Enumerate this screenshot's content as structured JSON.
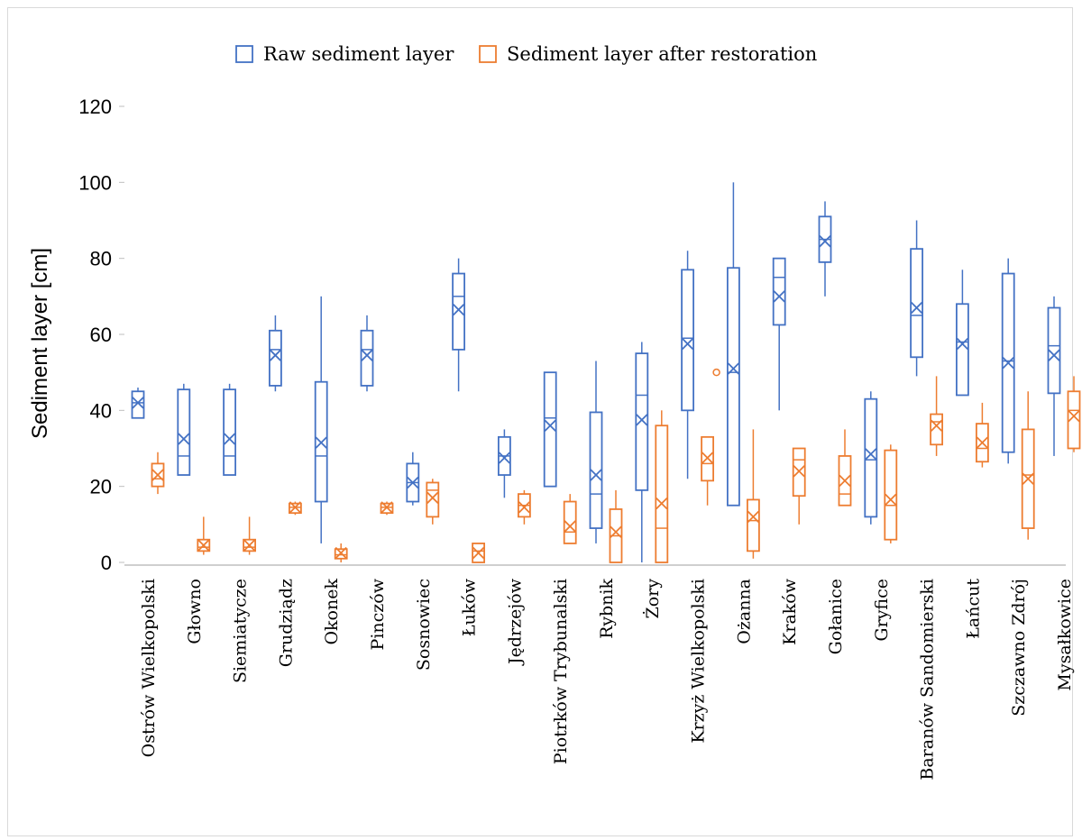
{
  "chart_data": {
    "type": "box",
    "ylabel": "Sediment layer [cm]",
    "ylim": [
      0,
      120
    ],
    "yticks": [
      0,
      20,
      40,
      60,
      80,
      100,
      120
    ],
    "grid": false,
    "legend_position": "top-center",
    "categories": [
      "Ostrów Wielkopolski",
      "Głowno",
      "Siemiatycze",
      "Grudziądz",
      "Okonek",
      "Pinczów",
      "Sosnowiec",
      "Łuków",
      "Jędrzejów",
      "Piotrków Trybunalski",
      "Rybnik",
      "Żory",
      "Krzyż Wielkopolski",
      "Ożanna",
      "Kraków",
      "Gołanice",
      "Gryfice",
      "Baranów Sandomierski",
      "Łańcut",
      "Szczawno Zdrój",
      "Mysałkowice"
    ],
    "series": [
      {
        "name": "Raw sediment layer",
        "color": "#4472C4",
        "boxes": [
          {
            "min": 38,
            "q1": 38,
            "median": 42,
            "q3": 45,
            "max": 46,
            "mean": 42,
            "outliers": []
          },
          {
            "min": 23,
            "q1": 23,
            "median": 28,
            "q3": 45.5,
            "max": 47,
            "mean": 32.5,
            "outliers": []
          },
          {
            "min": 23,
            "q1": 23,
            "median": 28,
            "q3": 45.5,
            "max": 47,
            "mean": 32.5,
            "outliers": []
          },
          {
            "min": 45,
            "q1": 46.5,
            "median": 56,
            "q3": 61,
            "max": 65,
            "mean": 54.5,
            "outliers": []
          },
          {
            "min": 5,
            "q1": 16,
            "median": 28,
            "q3": 47.5,
            "max": 70,
            "mean": 31.5,
            "outliers": []
          },
          {
            "min": 45,
            "q1": 46.5,
            "median": 56,
            "q3": 61,
            "max": 65,
            "mean": 54.5,
            "outliers": []
          },
          {
            "min": 15,
            "q1": 16,
            "median": 21,
            "q3": 26,
            "max": 29,
            "mean": 21,
            "outliers": []
          },
          {
            "min": 45,
            "q1": 56,
            "median": 70,
            "q3": 76,
            "max": 80,
            "mean": 66.5,
            "outliers": []
          },
          {
            "min": 17,
            "q1": 23,
            "median": 28,
            "q3": 33,
            "max": 35,
            "mean": 27.5,
            "outliers": []
          },
          {
            "min": 20,
            "q1": 20,
            "median": 38,
            "q3": 50,
            "max": 50,
            "mean": 36,
            "outliers": []
          },
          {
            "min": 5,
            "q1": 9,
            "median": 18,
            "q3": 39.5,
            "max": 53,
            "mean": 23,
            "outliers": []
          },
          {
            "min": 0,
            "q1": 19,
            "median": 44,
            "q3": 55,
            "max": 58,
            "mean": 37.5,
            "outliers": []
          },
          {
            "min": 22,
            "q1": 40,
            "median": 59,
            "q3": 77,
            "max": 82,
            "mean": 57.5,
            "outliers": []
          },
          {
            "min": 15,
            "q1": 15,
            "median": 50,
            "q3": 77.5,
            "max": 100,
            "mean": 51,
            "outliers": []
          },
          {
            "min": 40,
            "q1": 62.5,
            "median": 75,
            "q3": 80,
            "max": 80,
            "mean": 70,
            "outliers": []
          },
          {
            "min": 70,
            "q1": 79,
            "median": 85,
            "q3": 91,
            "max": 95,
            "mean": 84.5,
            "outliers": []
          },
          {
            "min": 10,
            "q1": 12,
            "median": 27,
            "q3": 43,
            "max": 45,
            "mean": 28.5,
            "outliers": []
          },
          {
            "min": 49,
            "q1": 54,
            "median": 65,
            "q3": 82.5,
            "max": 90,
            "mean": 67,
            "outliers": []
          },
          {
            "min": 44,
            "q1": 44,
            "median": 58,
            "q3": 68,
            "max": 77,
            "mean": 57.5,
            "outliers": []
          },
          {
            "min": 26,
            "q1": 29,
            "median": 53,
            "q3": 76,
            "max": 80,
            "mean": 52.5,
            "outliers": []
          },
          {
            "min": 28,
            "q1": 44.5,
            "median": 57,
            "q3": 67,
            "max": 70,
            "mean": 54.5,
            "outliers": []
          }
        ]
      },
      {
        "name": "Sediment layer after restoration",
        "color": "#ED7D31",
        "boxes": [
          {
            "min": 18,
            "q1": 20,
            "median": 22,
            "q3": 26,
            "max": 29,
            "mean": 23,
            "outliers": []
          },
          {
            "min": 2,
            "q1": 3,
            "median": 4,
            "q3": 6,
            "max": 12,
            "mean": 4.5,
            "outliers": []
          },
          {
            "min": 2,
            "q1": 3,
            "median": 4,
            "q3": 6,
            "max": 12,
            "mean": 4.5,
            "outliers": []
          },
          {
            "min": 12.5,
            "q1": 13,
            "median": 14.5,
            "q3": 15.5,
            "max": 16,
            "mean": 14.5,
            "outliers": []
          },
          {
            "min": 0,
            "q1": 1,
            "median": 2,
            "q3": 3.5,
            "max": 5,
            "mean": 2.5,
            "outliers": []
          },
          {
            "min": 12.5,
            "q1": 13,
            "median": 14.5,
            "q3": 15.5,
            "max": 16,
            "mean": 14.5,
            "outliers": []
          },
          {
            "min": 10,
            "q1": 12,
            "median": 19,
            "q3": 21,
            "max": 22,
            "mean": 17,
            "outliers": []
          },
          {
            "min": 0,
            "q1": 0,
            "median": 3,
            "q3": 5,
            "max": 5,
            "mean": 2.5,
            "outliers": []
          },
          {
            "min": 10,
            "q1": 12,
            "median": 15,
            "q3": 18,
            "max": 19,
            "mean": 14.5,
            "outliers": []
          },
          {
            "min": 5,
            "q1": 5,
            "median": 8,
            "q3": 16,
            "max": 18,
            "mean": 9.5,
            "outliers": []
          },
          {
            "min": 0,
            "q1": 0,
            "median": 7,
            "q3": 14,
            "max": 19,
            "mean": 8,
            "outliers": []
          },
          {
            "min": 0,
            "q1": 0,
            "median": 9,
            "q3": 36,
            "max": 40,
            "mean": 15.5,
            "outliers": []
          },
          {
            "min": 15,
            "q1": 21.5,
            "median": 26,
            "q3": 33,
            "max": 33,
            "mean": 27.5,
            "outliers": [
              50
            ]
          },
          {
            "min": 1,
            "q1": 3,
            "median": 11,
            "q3": 16.5,
            "max": 35,
            "mean": 12,
            "outliers": []
          },
          {
            "min": 10,
            "q1": 17.5,
            "median": 27,
            "q3": 30,
            "max": 30,
            "mean": 24,
            "outliers": []
          },
          {
            "min": 15,
            "q1": 15,
            "median": 18,
            "q3": 28,
            "max": 35,
            "mean": 21.5,
            "outliers": []
          },
          {
            "min": 5,
            "q1": 6,
            "median": 15,
            "q3": 29.5,
            "max": 31,
            "mean": 16.5,
            "outliers": []
          },
          {
            "min": 28,
            "q1": 31,
            "median": 37,
            "q3": 39,
            "max": 49,
            "mean": 36,
            "outliers": []
          },
          {
            "min": 25,
            "q1": 26.5,
            "median": 30,
            "q3": 36.5,
            "max": 42,
            "mean": 31.5,
            "outliers": []
          },
          {
            "min": 6,
            "q1": 9,
            "median": 23,
            "q3": 35,
            "max": 45,
            "mean": 22,
            "outliers": []
          },
          {
            "min": 29,
            "q1": 30,
            "median": 40,
            "q3": 45,
            "max": 49,
            "mean": 38.5,
            "outliers": []
          }
        ]
      }
    ]
  }
}
